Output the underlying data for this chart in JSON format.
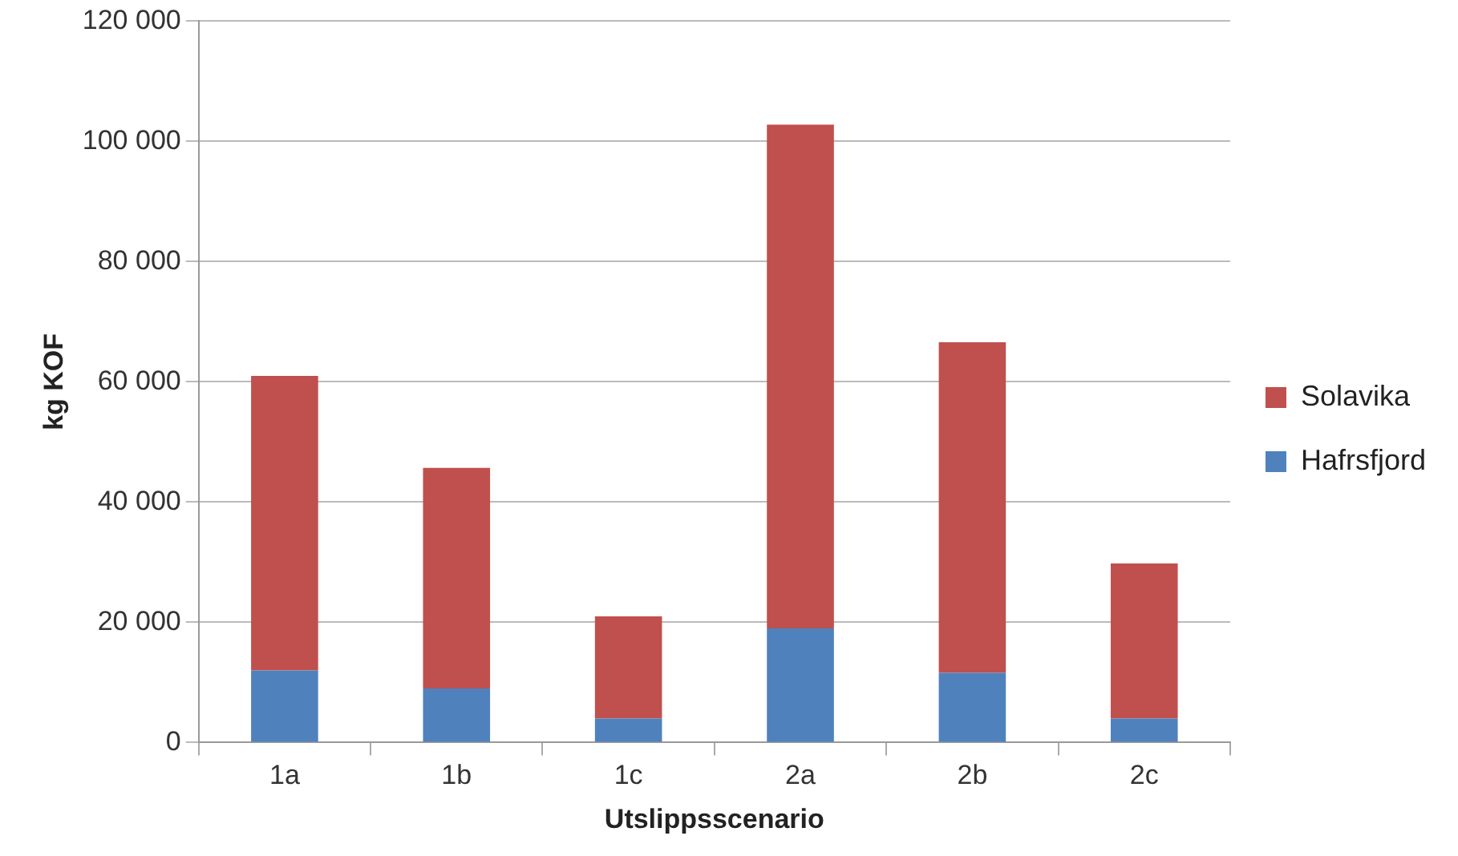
{
  "chart_data": {
    "type": "bar",
    "stacked": true,
    "xlabel": "Utslippsscenario",
    "ylabel": "kg KOF",
    "categories": [
      "1a",
      "1b",
      "1c",
      "2a",
      "2b",
      "2c"
    ],
    "series": [
      {
        "name": "Hafrsfjord",
        "color": "#4f81bd",
        "values": [
          12000,
          9000,
          4000,
          19000,
          11600,
          4000
        ]
      },
      {
        "name": "Solavika",
        "color": "#c0504d",
        "values": [
          49000,
          36700,
          17000,
          83800,
          55000,
          25800
        ]
      }
    ],
    "ylim": [
      0,
      120000
    ],
    "yticks": [
      {
        "value": 0,
        "label": "0"
      },
      {
        "value": 20000,
        "label": "20 000"
      },
      {
        "value": 40000,
        "label": "40 000"
      },
      {
        "value": 60000,
        "label": "60 000"
      },
      {
        "value": 80000,
        "label": "80 000"
      },
      {
        "value": 100000,
        "label": "100 000"
      },
      {
        "value": 120000,
        "label": "120 000"
      }
    ],
    "grid": "y",
    "legend": "right"
  }
}
